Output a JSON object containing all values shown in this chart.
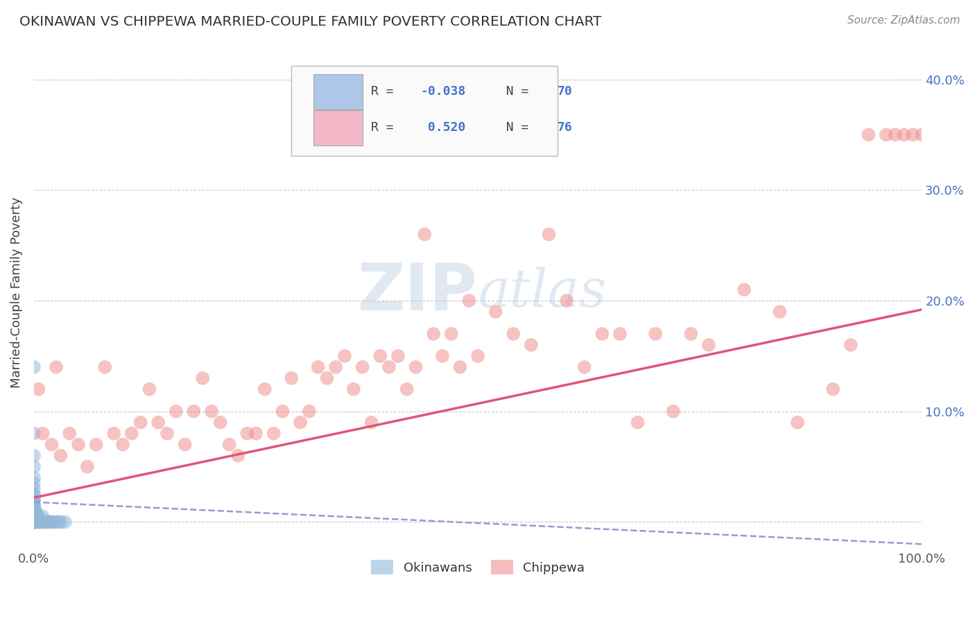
{
  "title": "OKINAWAN VS CHIPPEWA MARRIED-COUPLE FAMILY POVERTY CORRELATION CHART",
  "source": "Source: ZipAtlas.com",
  "ylabel": "Married-Couple Family Poverty",
  "ytick_values": [
    0.0,
    0.1,
    0.2,
    0.3,
    0.4
  ],
  "right_ytick_labels": [
    "10.0%",
    "20.0%",
    "30.0%",
    "40.0%"
  ],
  "xlim": [
    0.0,
    1.0
  ],
  "ylim": [
    -0.025,
    0.44
  ],
  "okinawan_scatter_x": [
    0.0,
    0.0,
    0.0,
    0.0,
    0.0,
    0.0,
    0.0,
    0.0,
    0.0,
    0.0,
    0.0,
    0.0,
    0.0,
    0.0,
    0.0,
    0.0,
    0.0,
    0.0,
    0.0,
    0.0,
    0.0,
    0.0,
    0.0,
    0.0,
    0.0,
    0.0,
    0.0,
    0.0,
    0.0,
    0.0,
    0.0,
    0.0,
    0.0,
    0.0,
    0.0,
    0.0,
    0.0,
    0.0,
    0.0,
    0.0,
    0.001,
    0.001,
    0.001,
    0.001,
    0.002,
    0.002,
    0.002,
    0.003,
    0.003,
    0.004,
    0.004,
    0.005,
    0.005,
    0.006,
    0.007,
    0.008,
    0.009,
    0.01,
    0.01,
    0.012,
    0.014,
    0.015,
    0.016,
    0.018,
    0.02,
    0.022,
    0.025,
    0.028,
    0.03,
    0.035
  ],
  "okinawan_scatter_y": [
    0.0,
    0.0,
    0.0,
    0.0,
    0.0,
    0.0,
    0.0,
    0.0,
    0.0,
    0.0,
    0.0,
    0.0,
    0.0,
    0.0,
    0.0,
    0.005,
    0.005,
    0.005,
    0.005,
    0.005,
    0.01,
    0.01,
    0.01,
    0.01,
    0.01,
    0.015,
    0.015,
    0.015,
    0.02,
    0.02,
    0.02,
    0.025,
    0.025,
    0.03,
    0.035,
    0.04,
    0.05,
    0.06,
    0.08,
    0.14,
    0.0,
    0.0,
    0.005,
    0.01,
    0.0,
    0.005,
    0.01,
    0.0,
    0.005,
    0.0,
    0.005,
    0.0,
    0.005,
    0.0,
    0.0,
    0.0,
    0.0,
    0.0,
    0.005,
    0.0,
    0.0,
    0.0,
    0.0,
    0.0,
    0.0,
    0.0,
    0.0,
    0.0,
    0.0,
    0.0
  ],
  "chippewa_scatter_x": [
    0.005,
    0.01,
    0.02,
    0.025,
    0.03,
    0.04,
    0.05,
    0.06,
    0.07,
    0.08,
    0.09,
    0.1,
    0.11,
    0.12,
    0.13,
    0.14,
    0.15,
    0.16,
    0.17,
    0.18,
    0.19,
    0.2,
    0.21,
    0.22,
    0.23,
    0.24,
    0.25,
    0.26,
    0.27,
    0.28,
    0.29,
    0.3,
    0.31,
    0.32,
    0.33,
    0.34,
    0.35,
    0.36,
    0.37,
    0.38,
    0.39,
    0.4,
    0.41,
    0.42,
    0.43,
    0.44,
    0.45,
    0.46,
    0.47,
    0.48,
    0.49,
    0.5,
    0.52,
    0.54,
    0.56,
    0.58,
    0.6,
    0.62,
    0.64,
    0.66,
    0.68,
    0.7,
    0.72,
    0.74,
    0.76,
    0.8,
    0.84,
    0.86,
    0.9,
    0.92,
    0.94,
    0.96,
    0.97,
    0.98,
    0.99,
    1.0
  ],
  "chippewa_scatter_y": [
    0.12,
    0.08,
    0.07,
    0.14,
    0.06,
    0.08,
    0.07,
    0.05,
    0.07,
    0.14,
    0.08,
    0.07,
    0.08,
    0.09,
    0.12,
    0.09,
    0.08,
    0.1,
    0.07,
    0.1,
    0.13,
    0.1,
    0.09,
    0.07,
    0.06,
    0.08,
    0.08,
    0.12,
    0.08,
    0.1,
    0.13,
    0.09,
    0.1,
    0.14,
    0.13,
    0.14,
    0.15,
    0.12,
    0.14,
    0.09,
    0.15,
    0.14,
    0.15,
    0.12,
    0.14,
    0.26,
    0.17,
    0.15,
    0.17,
    0.14,
    0.2,
    0.15,
    0.19,
    0.17,
    0.16,
    0.26,
    0.2,
    0.14,
    0.17,
    0.17,
    0.09,
    0.17,
    0.1,
    0.17,
    0.16,
    0.21,
    0.19,
    0.09,
    0.12,
    0.16,
    0.35,
    0.35,
    0.35,
    0.35,
    0.35,
    0.35
  ],
  "okinawan_line_x": [
    0.0,
    1.0
  ],
  "okinawan_line_y": [
    0.018,
    -0.02
  ],
  "chippewa_line_x": [
    0.0,
    1.0
  ],
  "chippewa_line_y": [
    0.022,
    0.192
  ],
  "watermark_zip": "ZIP",
  "watermark_atlas": "atlas",
  "background_color": "#ffffff",
  "grid_color": "#c8c8c8",
  "okinawan_color": "#92b8d9",
  "chippewa_color": "#f09090",
  "okinawan_line_color": "#9999cc",
  "chippewa_line_color": "#e05575",
  "title_color": "#333333",
  "source_color": "#888888",
  "legend_box_color": "#aec6e8",
  "legend_pink_color": "#f4b8c8",
  "legend_text_blue": "#4472c4",
  "legend_text_dark": "#444444"
}
